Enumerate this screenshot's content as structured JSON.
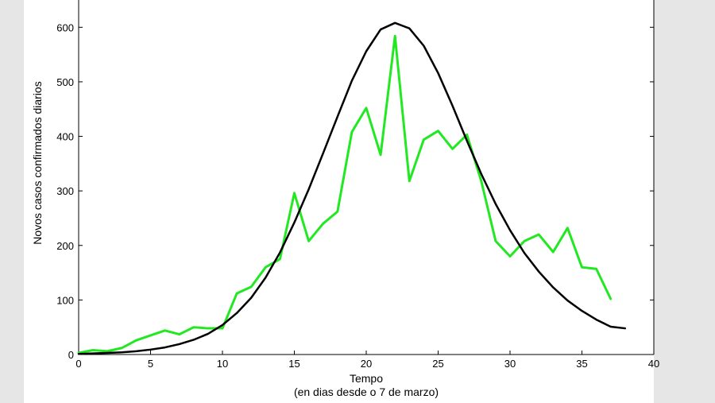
{
  "chart_data": {
    "type": "line",
    "xlabel": "Tempo",
    "xlabel_sub": "(en dias desde o 7 de marzo)",
    "ylabel": "Novos casos confirmados diarios",
    "xlim": [
      0,
      40
    ],
    "ylim": [
      0,
      650
    ],
    "xticks": [
      0,
      5,
      10,
      15,
      20,
      25,
      30,
      35,
      40
    ],
    "yticks": [
      0,
      100,
      200,
      300,
      400,
      500,
      600
    ],
    "grid": false,
    "colors": {
      "observed": "#22e822",
      "model": "#000000",
      "plot_background": "#ffffff",
      "figure_background": "#e6e6e6"
    },
    "series": [
      {
        "key": "observed",
        "x": [
          0,
          1,
          2,
          3,
          4,
          5,
          6,
          7,
          8,
          9,
          10,
          11,
          12,
          13,
          14,
          15,
          16,
          17,
          18,
          19,
          20,
          21,
          22,
          23,
          24,
          25,
          26,
          27,
          28,
          29,
          30,
          31,
          32,
          33,
          34,
          35,
          36,
          37
        ],
        "y": [
          3,
          8,
          6,
          12,
          26,
          35,
          44,
          37,
          50,
          48,
          48,
          112,
          124,
          160,
          175,
          296,
          208,
          240,
          262,
          408,
          452,
          366,
          584,
          318,
          394,
          410,
          377,
          403,
          318,
          208,
          180,
          208,
          220,
          188,
          232,
          160,
          157,
          102
        ]
      },
      {
        "key": "model",
        "x": [
          0,
          1,
          2,
          3,
          4,
          5,
          6,
          7,
          8,
          9,
          10,
          11,
          12,
          13,
          14,
          15,
          16,
          17,
          18,
          19,
          20,
          21,
          22,
          23,
          24,
          25,
          26,
          27,
          28,
          29,
          30,
          31,
          32,
          33,
          34,
          35,
          36,
          37,
          38
        ],
        "y": [
          1,
          2,
          3,
          4,
          6,
          9,
          13,
          19,
          27,
          38,
          54,
          76,
          104,
          141,
          187,
          242,
          303,
          369,
          436,
          502,
          556,
          596,
          608,
          598,
          566,
          516,
          456,
          392,
          331,
          276,
          228,
          186,
          152,
          123,
          99,
          80,
          64,
          51,
          48
        ]
      }
    ]
  }
}
